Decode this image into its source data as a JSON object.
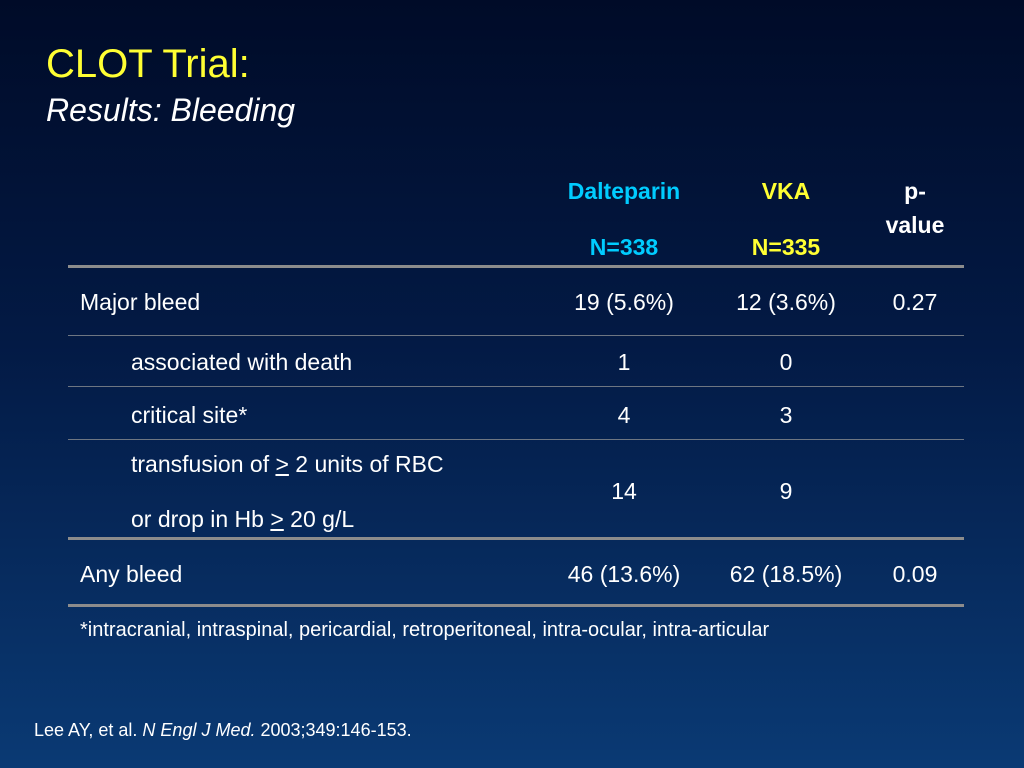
{
  "slide": {
    "title": "CLOT Trial:",
    "subtitle": "Results: Bleeding"
  },
  "table": {
    "headers": {
      "dalteparin": "Dalteparin",
      "dalteparin_n": "N=338",
      "vka": "VKA",
      "vka_n": "N=335",
      "pvalue_1": "p-",
      "pvalue_2": "value"
    },
    "rows": [
      {
        "label": "Major bleed",
        "dalteparin": "19 (5.6%)",
        "vka": "12 (3.6%)",
        "pvalue": "0.27"
      },
      {
        "label": "associated with death",
        "dalteparin": "1",
        "vka": "0",
        "pvalue": ""
      },
      {
        "label": "critical site*",
        "dalteparin": "4",
        "vka": "3",
        "pvalue": ""
      },
      {
        "label_line1_pre": "transfusion of ",
        "label_line1_sym": ">",
        "label_line1_post": " 2 units of  RBC",
        "label_line2_pre": "or drop in Hb ",
        "label_line2_sym": ">",
        "label_line2_post": " 20 g/L",
        "dalteparin": "14",
        "vka": "9",
        "pvalue": ""
      },
      {
        "label": "Any bleed",
        "dalteparin": "46 (13.6%)",
        "vka": "62 (18.5%)",
        "pvalue": "0.09"
      }
    ]
  },
  "footnote": "*intracranial, intraspinal, pericardial, retroperitoneal, intra-ocular, intra-articular",
  "citation": {
    "authors": "Lee AY, et al. ",
    "journal": "N Engl J Med.",
    "details": " 2003;349:146-153."
  },
  "colors": {
    "title": "#ffff33",
    "dalteparin_header": "#00ccff",
    "vka_header": "#ffff33",
    "rule": "#8c8c8c"
  }
}
